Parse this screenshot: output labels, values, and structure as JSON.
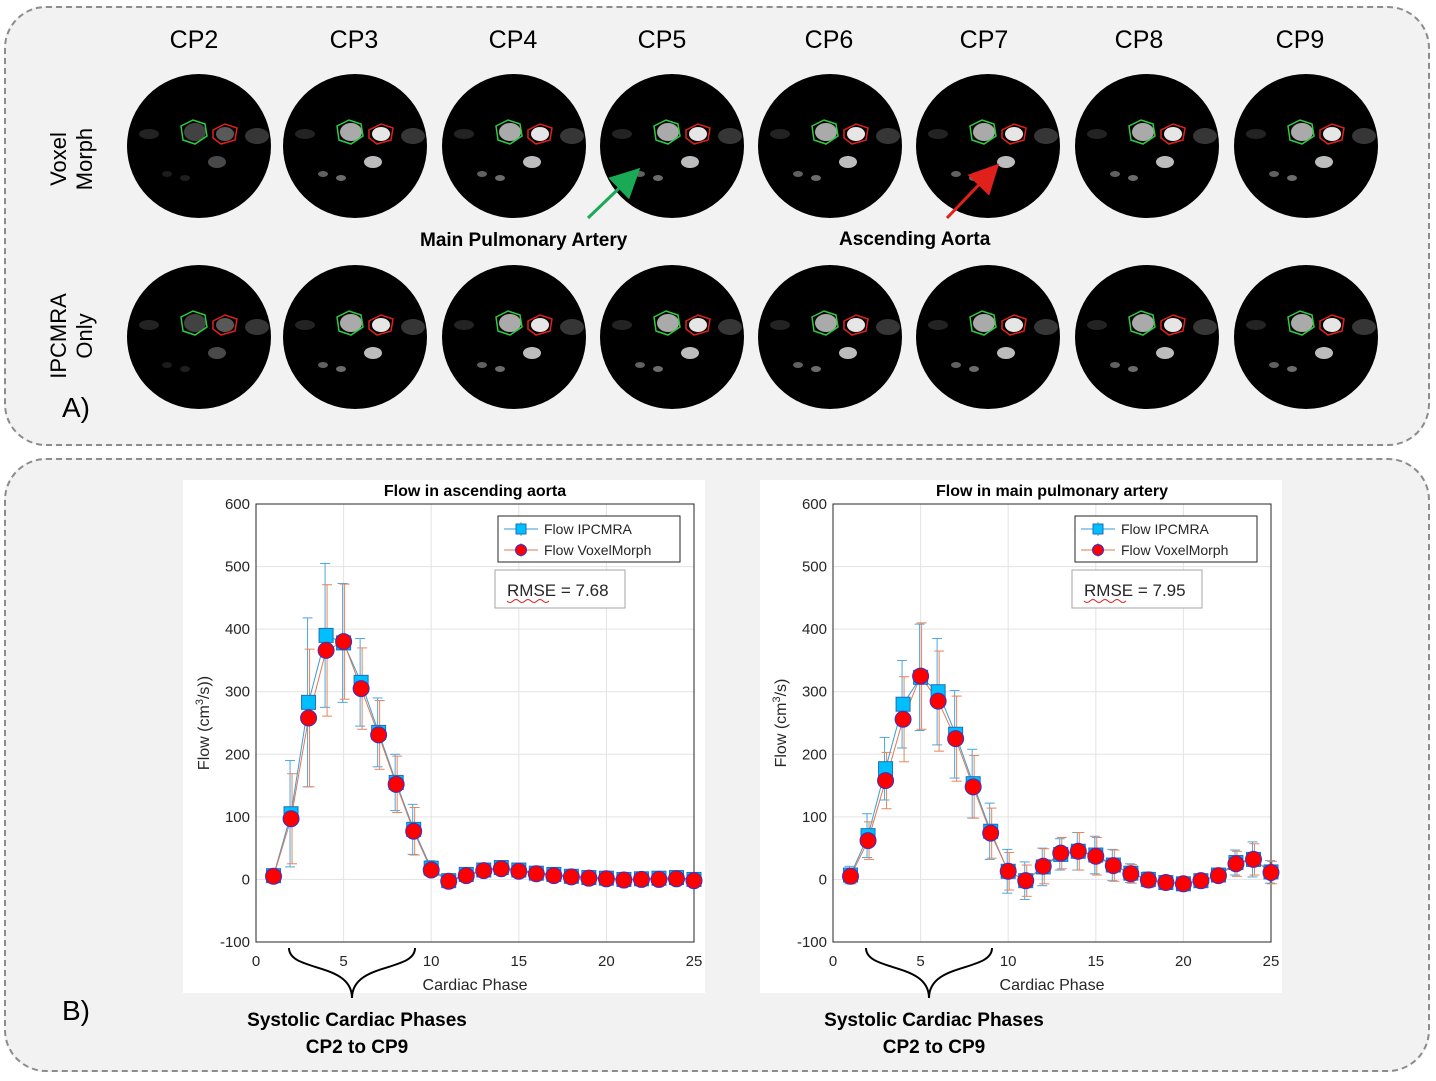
{
  "panel_a": {
    "letter": "A)",
    "columns": [
      "CP2",
      "CP3",
      "CP4",
      "CP5",
      "CP6",
      "CP7",
      "CP8",
      "CP9"
    ],
    "rows": [
      {
        "label_line1": "Voxel",
        "label_line2": "Morph"
      },
      {
        "label_line1": "IPCMRA",
        "label_line2": "Only"
      }
    ],
    "annotations": {
      "pulmonary": "Main Pulmonary Artery",
      "aorta": "Ascending Aorta"
    },
    "colors": {
      "pulmonary_arrow": "#1aaa55",
      "aorta_arrow": "#e0201a",
      "contour_green": "#2ecc40",
      "contour_red": "#e0201a"
    }
  },
  "panel_b": {
    "letter": "B)",
    "systolic_label_line1": "Systolic Cardiac Phases",
    "systolic_label_line2": "CP2 to CP9"
  },
  "chart_data": [
    {
      "type": "line",
      "title": "Flow in ascending aorta",
      "xlabel": "Cardiac Phase",
      "ylabel_prefix": "Flow (cm",
      "ylabel_sup": "3",
      "ylabel_suffix": "/s))",
      "xlim": [
        0,
        25
      ],
      "ylim": [
        -100,
        600
      ],
      "xticks": [
        0,
        5,
        10,
        15,
        20,
        25
      ],
      "yticks": [
        -100,
        0,
        100,
        200,
        300,
        400,
        500,
        600
      ],
      "grid": true,
      "legend_position": "top-right",
      "rmse_text": "RMSE = 7.68",
      "x": [
        1,
        2,
        3,
        4,
        5,
        6,
        7,
        8,
        9,
        10,
        11,
        12,
        13,
        14,
        15,
        16,
        17,
        18,
        19,
        20,
        21,
        22,
        23,
        24,
        25
      ],
      "series": [
        {
          "name": "Flow IPCMRA",
          "color": "#00bfff",
          "marker": "square",
          "values": [
            6,
            105,
            283,
            390,
            378,
            315,
            235,
            155,
            80,
            18,
            -2,
            8,
            15,
            19,
            15,
            10,
            8,
            5,
            3,
            2,
            0,
            1,
            2,
            3,
            0
          ],
          "errors": [
            10,
            85,
            135,
            115,
            95,
            70,
            55,
            45,
            40,
            12,
            8,
            6,
            6,
            6,
            6,
            6,
            5,
            5,
            5,
            5,
            5,
            5,
            5,
            5,
            5
          ]
        },
        {
          "name": "Flow VoxelMorph",
          "color": "#ff0000",
          "marker": "circle",
          "values": [
            5,
            97,
            258,
            366,
            380,
            305,
            231,
            152,
            77,
            15,
            -3,
            6,
            14,
            17,
            13,
            9,
            6,
            4,
            2,
            1,
            -1,
            0,
            0,
            1,
            -2
          ],
          "errors": [
            8,
            72,
            110,
            105,
            92,
            65,
            55,
            45,
            38,
            10,
            7,
            6,
            6,
            6,
            6,
            6,
            5,
            5,
            5,
            5,
            5,
            5,
            5,
            5,
            5
          ]
        }
      ]
    },
    {
      "type": "line",
      "title": "Flow in main pulmonary artery",
      "xlabel": "Cardiac Phase",
      "ylabel_prefix": "Flow (cm",
      "ylabel_sup": "3",
      "ylabel_suffix": "/s)",
      "xlim": [
        0,
        25
      ],
      "ylim": [
        -100,
        600
      ],
      "xticks": [
        0,
        5,
        10,
        15,
        20,
        25
      ],
      "yticks": [
        -100,
        0,
        100,
        200,
        300,
        400,
        500,
        600
      ],
      "grid": true,
      "legend_position": "top-right",
      "rmse_text": "RMSE = 7.95",
      "x": [
        1,
        2,
        3,
        4,
        5,
        6,
        7,
        8,
        9,
        10,
        11,
        12,
        13,
        14,
        15,
        16,
        17,
        18,
        19,
        20,
        21,
        22,
        23,
        24,
        25
      ],
      "series": [
        {
          "name": "Flow IPCMRA",
          "color": "#00bfff",
          "marker": "square",
          "values": [
            7,
            70,
            177,
            280,
            323,
            300,
            232,
            153,
            77,
            13,
            -2,
            20,
            40,
            45,
            39,
            23,
            10,
            0,
            -5,
            -7,
            -2,
            7,
            27,
            32,
            12
          ],
          "errors": [
            14,
            35,
            50,
            70,
            85,
            85,
            70,
            55,
            45,
            35,
            30,
            30,
            25,
            30,
            30,
            25,
            15,
            12,
            10,
            10,
            10,
            10,
            20,
            28,
            18
          ]
        },
        {
          "name": "Flow VoxelMorph",
          "color": "#ff0000",
          "marker": "circle",
          "values": [
            5,
            62,
            158,
            256,
            325,
            285,
            225,
            148,
            74,
            13,
            -2,
            21,
            42,
            45,
            37,
            22,
            9,
            -1,
            -5,
            -7,
            -2,
            6,
            25,
            32,
            11
          ],
          "errors": [
            12,
            30,
            45,
            68,
            85,
            80,
            68,
            50,
            40,
            30,
            25,
            28,
            25,
            30,
            30,
            25,
            15,
            12,
            10,
            10,
            10,
            10,
            20,
            25,
            18
          ]
        }
      ]
    }
  ]
}
